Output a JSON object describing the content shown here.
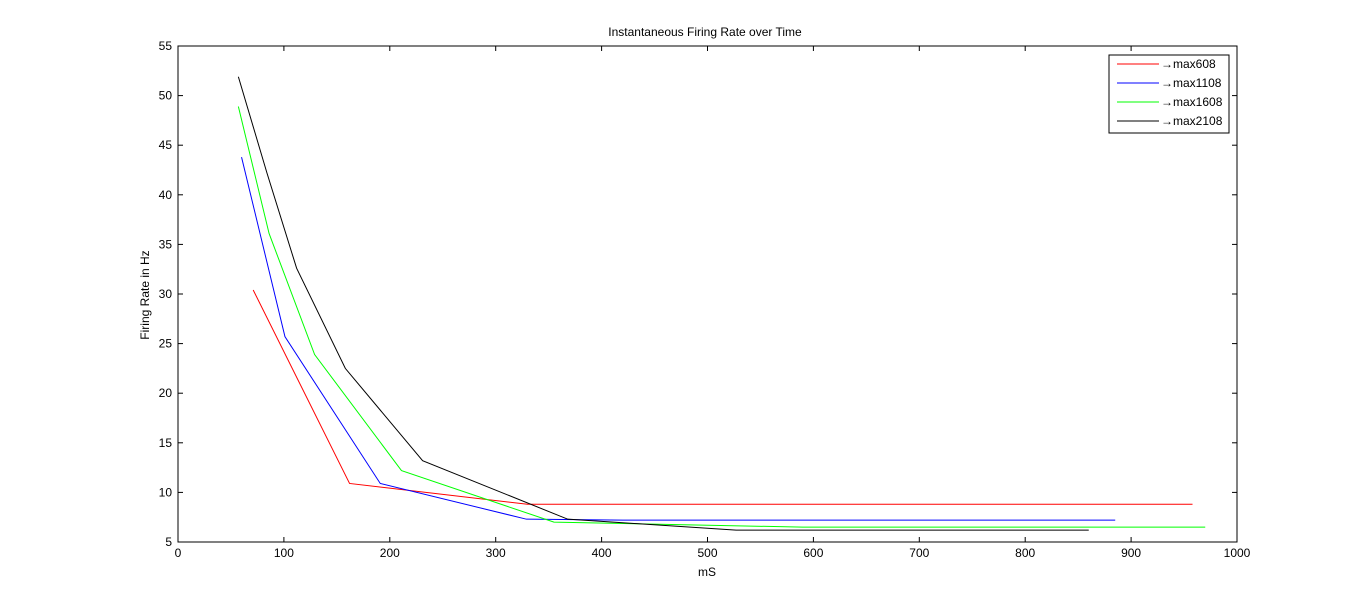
{
  "chart_data": {
    "type": "line",
    "title": "Instantaneous Firing Rate over Time",
    "xlabel": "mS",
    "ylabel": "Firing Rate in Hz",
    "xlim": [
      0,
      1000
    ],
    "ylim": [
      5,
      55
    ],
    "xticks": [
      0,
      100,
      200,
      300,
      400,
      500,
      600,
      700,
      800,
      900,
      1000
    ],
    "yticks": [
      5,
      10,
      15,
      20,
      25,
      30,
      35,
      40,
      45,
      50,
      55
    ],
    "grid": false,
    "legend": "top-right",
    "series": [
      {
        "name": "→max608",
        "color": "#ff0000",
        "x": [
          71,
          162,
          330,
          958
        ],
        "y": [
          30.4,
          10.9,
          8.8,
          8.8
        ]
      },
      {
        "name": "→max1108",
        "color": "#0000ff",
        "x": [
          60,
          101,
          191,
          329,
          420,
          885
        ],
        "y": [
          43.8,
          25.7,
          10.9,
          7.3,
          7.2,
          7.2
        ]
      },
      {
        "name": "→max1608",
        "color": "#00ff00",
        "x": [
          57,
          86,
          129,
          211,
          355,
          590,
          970
        ],
        "y": [
          48.9,
          36.1,
          23.9,
          12.2,
          7.0,
          6.5,
          6.5
        ]
      },
      {
        "name": "→max2108",
        "color": "#000000",
        "x": [
          57,
          84,
          112,
          158,
          231,
          368,
          527,
          860
        ],
        "y": [
          51.9,
          42.2,
          32.6,
          22.5,
          13.2,
          7.3,
          6.2,
          6.2
        ]
      }
    ]
  }
}
